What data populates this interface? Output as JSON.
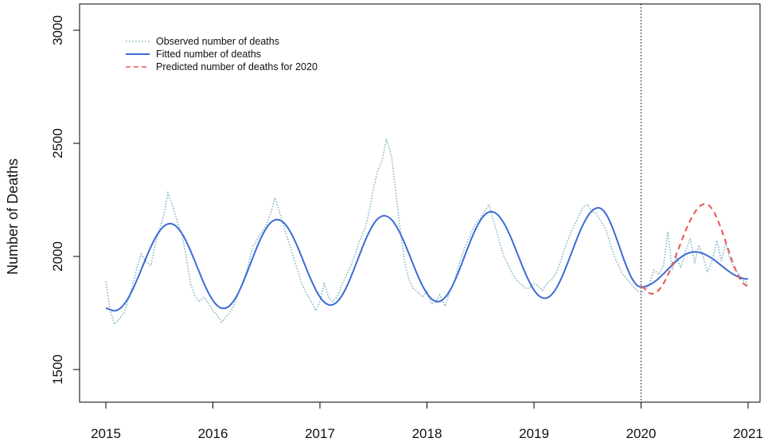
{
  "chart_data": {
    "type": "line",
    "title": "",
    "xlabel": "",
    "ylabel": "Number of Deaths",
    "xlim": [
      2015,
      2021
    ],
    "ylim": [
      1500,
      3000
    ],
    "x_ticks": [
      2015,
      2016,
      2017,
      2018,
      2019,
      2020,
      2021
    ],
    "x_tick_labels": [
      "2015",
      "2016",
      "2017",
      "2018",
      "2019",
      "2020",
      "2021"
    ],
    "y_ticks": [
      1500,
      2000,
      2500,
      3000
    ],
    "y_tick_labels": [
      "1500",
      "2000",
      "2500",
      "3000"
    ],
    "grid": false,
    "legend_position": "top-left",
    "reference_lines": [
      {
        "x": 2020,
        "style": "dotted"
      }
    ],
    "series": [
      {
        "name": "Observed number of deaths",
        "style": "dotted",
        "color": "#7fb3c4",
        "x": [
          2015.0,
          2015.04,
          2015.08,
          2015.12,
          2015.17,
          2015.21,
          2015.25,
          2015.29,
          2015.33,
          2015.37,
          2015.42,
          2015.46,
          2015.5,
          2015.54,
          2015.58,
          2015.62,
          2015.67,
          2015.71,
          2015.75,
          2015.79,
          2015.83,
          2015.87,
          2015.92,
          2015.96,
          2016.0,
          2016.04,
          2016.08,
          2016.12,
          2016.17,
          2016.21,
          2016.25,
          2016.29,
          2016.33,
          2016.37,
          2016.42,
          2016.46,
          2016.5,
          2016.54,
          2016.58,
          2016.62,
          2016.67,
          2016.71,
          2016.75,
          2016.79,
          2016.83,
          2016.87,
          2016.92,
          2016.96,
          2017.0,
          2017.04,
          2017.08,
          2017.12,
          2017.17,
          2017.21,
          2017.25,
          2017.29,
          2017.33,
          2017.37,
          2017.42,
          2017.46,
          2017.5,
          2017.54,
          2017.58,
          2017.62,
          2017.67,
          2017.71,
          2017.75,
          2017.79,
          2017.83,
          2017.87,
          2017.92,
          2017.96,
          2018.0,
          2018.04,
          2018.08,
          2018.12,
          2018.17,
          2018.21,
          2018.25,
          2018.29,
          2018.33,
          2018.37,
          2018.42,
          2018.46,
          2018.5,
          2018.54,
          2018.58,
          2018.62,
          2018.67,
          2018.71,
          2018.75,
          2018.79,
          2018.83,
          2018.87,
          2018.92,
          2018.96,
          2019.0,
          2019.04,
          2019.08,
          2019.12,
          2019.17,
          2019.21,
          2019.25,
          2019.29,
          2019.33,
          2019.37,
          2019.42,
          2019.46,
          2019.5,
          2019.54,
          2019.58,
          2019.62,
          2019.67,
          2019.71,
          2019.75,
          2019.79,
          2019.83,
          2019.87,
          2019.92,
          2019.96,
          2020.0,
          2020.04,
          2020.08,
          2020.12,
          2020.17,
          2020.21,
          2020.25,
          2020.29,
          2020.33,
          2020.37,
          2020.42,
          2020.46,
          2020.5,
          2020.54,
          2020.58,
          2020.62,
          2020.67,
          2020.71,
          2020.75,
          2020.79,
          2020.83,
          2020.87,
          2020.92,
          2020.96,
          2021.0
        ],
        "values": [
          1890,
          1760,
          1700,
          1720,
          1750,
          1810,
          1870,
          1950,
          2010,
          1980,
          1960,
          2050,
          2120,
          2180,
          2280,
          2230,
          2150,
          2100,
          2000,
          1880,
          1830,
          1800,
          1820,
          1790,
          1760,
          1740,
          1710,
          1730,
          1760,
          1800,
          1850,
          1900,
          1960,
          2040,
          2080,
          2110,
          2140,
          2190,
          2260,
          2200,
          2120,
          2060,
          2000,
          1940,
          1880,
          1840,
          1800,
          1760,
          1800,
          1880,
          1820,
          1800,
          1830,
          1880,
          1920,
          1960,
          2010,
          2070,
          2120,
          2200,
          2300,
          2380,
          2420,
          2520,
          2440,
          2280,
          2120,
          1980,
          1900,
          1860,
          1840,
          1820,
          1850,
          1790,
          1800,
          1830,
          1780,
          1840,
          1880,
          1950,
          2010,
          2060,
          2110,
          2150,
          2170,
          2200,
          2230,
          2160,
          2080,
          2010,
          1970,
          1930,
          1900,
          1880,
          1860,
          1860,
          1880,
          1870,
          1850,
          1880,
          1900,
          1930,
          1980,
          2040,
          2090,
          2130,
          2180,
          2220,
          2230,
          2200,
          2190,
          2160,
          2120,
          2060,
          2000,
          1960,
          1920,
          1900,
          1870,
          1850,
          1840,
          1850,
          1880,
          1940,
          1920,
          1960,
          2110,
          1940,
          2000,
          1950,
          2030,
          2080,
          1970,
          2050,
          2000,
          1930,
          1990,
          2070,
          1980,
          2060,
          1990,
          1950,
          1920,
          1890,
          1880
        ],
        "note": ""
      },
      {
        "name": "Fitted number of deaths",
        "style": "solid",
        "color": "#3c6bd6",
        "x": [],
        "values": []
      },
      {
        "name": "Predicted number of deaths for 2020",
        "style": "dashed",
        "color": "#e8544e",
        "x": [],
        "values": []
      }
    ],
    "fitted_peaks": [
      {
        "x": 2015.0,
        "y": 1770
      },
      {
        "x": 2015.08,
        "y": 1760
      },
      {
        "x": 2015.6,
        "y": 2145
      },
      {
        "x": 2016.1,
        "y": 1770
      },
      {
        "x": 2016.6,
        "y": 2163
      },
      {
        "x": 2017.1,
        "y": 1785
      },
      {
        "x": 2017.6,
        "y": 2180
      },
      {
        "x": 2018.1,
        "y": 1800
      },
      {
        "x": 2018.6,
        "y": 2198
      },
      {
        "x": 2019.1,
        "y": 1815
      },
      {
        "x": 2019.6,
        "y": 2215
      },
      {
        "x": 2020.0,
        "y": 1865
      },
      {
        "x": 2020.5,
        "y": 2020
      },
      {
        "x": 2021.0,
        "y": 1900
      }
    ],
    "predicted_points": [
      {
        "x": 2020.0,
        "y": 1865
      },
      {
        "x": 2020.1,
        "y": 1835
      },
      {
        "x": 2020.6,
        "y": 2232
      },
      {
        "x": 2021.0,
        "y": 1870
      }
    ]
  }
}
